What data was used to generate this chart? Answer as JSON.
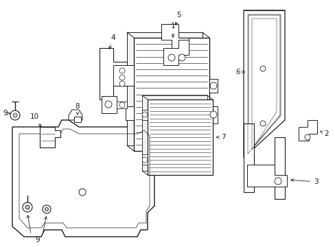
{
  "bg_color": "#ffffff",
  "line_color": "#1a1a1a",
  "label_color": "#1a1a1a",
  "figsize": [
    4.89,
    3.6
  ],
  "dpi": 100,
  "font_size": 7.5
}
